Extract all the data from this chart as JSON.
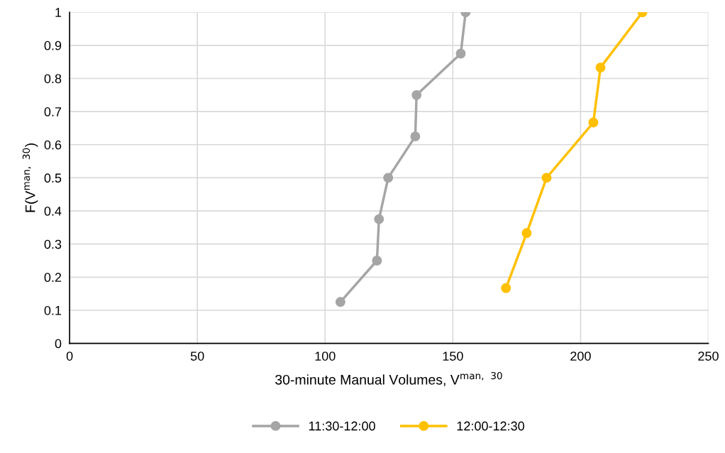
{
  "chart_data": {
    "type": "line",
    "xlabel": "30-minute Manual Volumes, V$^{man, 30}$",
    "ylabel": "F(V$^{man, 30}$)",
    "xlim": [
      0,
      250
    ],
    "xticks": [
      0,
      50,
      100,
      150,
      200,
      250
    ],
    "ylim": [
      0,
      1
    ],
    "yticks": [
      0,
      0.1,
      0.2,
      0.3,
      0.4,
      0.5,
      0.6,
      0.7,
      0.8,
      0.9,
      1
    ],
    "grid": true,
    "legend": "bottom",
    "marker": "circle",
    "line_style": "solid",
    "series": [
      {
        "name": "11:30-12:00",
        "color": "#a5a5a5",
        "x": [
          106,
          120.3,
          121.1,
          124.7,
          135.3,
          135.8,
          153.1,
          155
        ],
        "values": [
          0.125,
          0.25,
          0.375,
          0.5,
          0.625,
          0.75,
          0.875,
          1
        ]
      },
      {
        "name": "12:00-12:30",
        "color": "#ffc000",
        "x": [
          170.8,
          178.9,
          186.7,
          205,
          207.8,
          224.2
        ],
        "values": [
          0.167,
          0.333,
          0.5,
          0.667,
          0.833,
          1
        ]
      }
    ]
  }
}
